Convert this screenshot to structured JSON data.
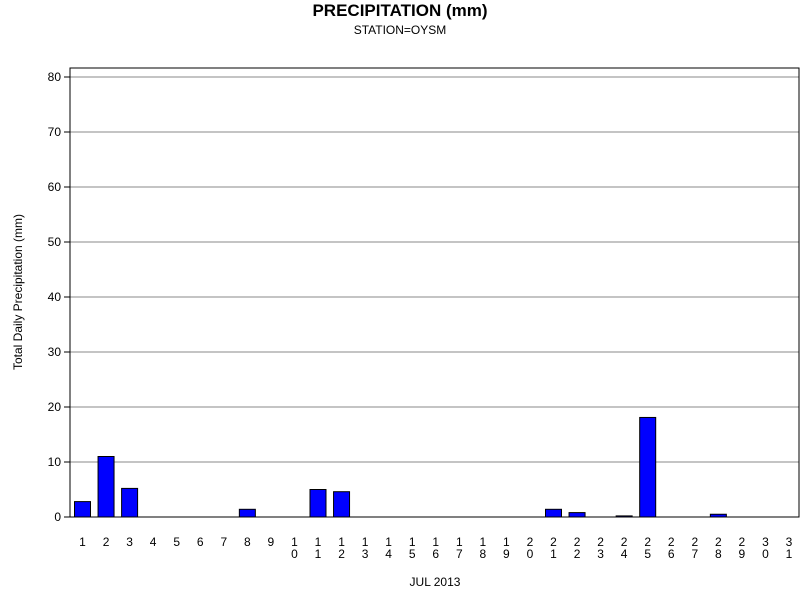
{
  "chart_data": {
    "type": "bar",
    "title": "PRECIPITATION (mm)",
    "subtitle": "STATION=OYSM",
    "xlabel": "JUL 2013",
    "ylabel": "Total Daily Precipitation (mm)",
    "ylim": [
      0,
      80
    ],
    "yticks": [
      "0",
      "10",
      "20",
      "30",
      "40",
      "50",
      "60",
      "70",
      "80"
    ],
    "grid": true,
    "bar_color": "#0000ff",
    "categories": [
      "1",
      "2",
      "3",
      "4",
      "5",
      "6",
      "7",
      "8",
      "9",
      "10",
      "11",
      "12",
      "13",
      "14",
      "15",
      "16",
      "17",
      "18",
      "19",
      "20",
      "21",
      "22",
      "23",
      "24",
      "25",
      "26",
      "27",
      "28",
      "29",
      "30",
      "31"
    ],
    "values": [
      2.8,
      11.0,
      5.2,
      0,
      0,
      0,
      0,
      1.4,
      0,
      0,
      5.0,
      4.6,
      0,
      0,
      0,
      0,
      0,
      0,
      0,
      0,
      1.4,
      0.8,
      0,
      0.2,
      18.1,
      0,
      0,
      0.5,
      0,
      0,
      0
    ]
  }
}
